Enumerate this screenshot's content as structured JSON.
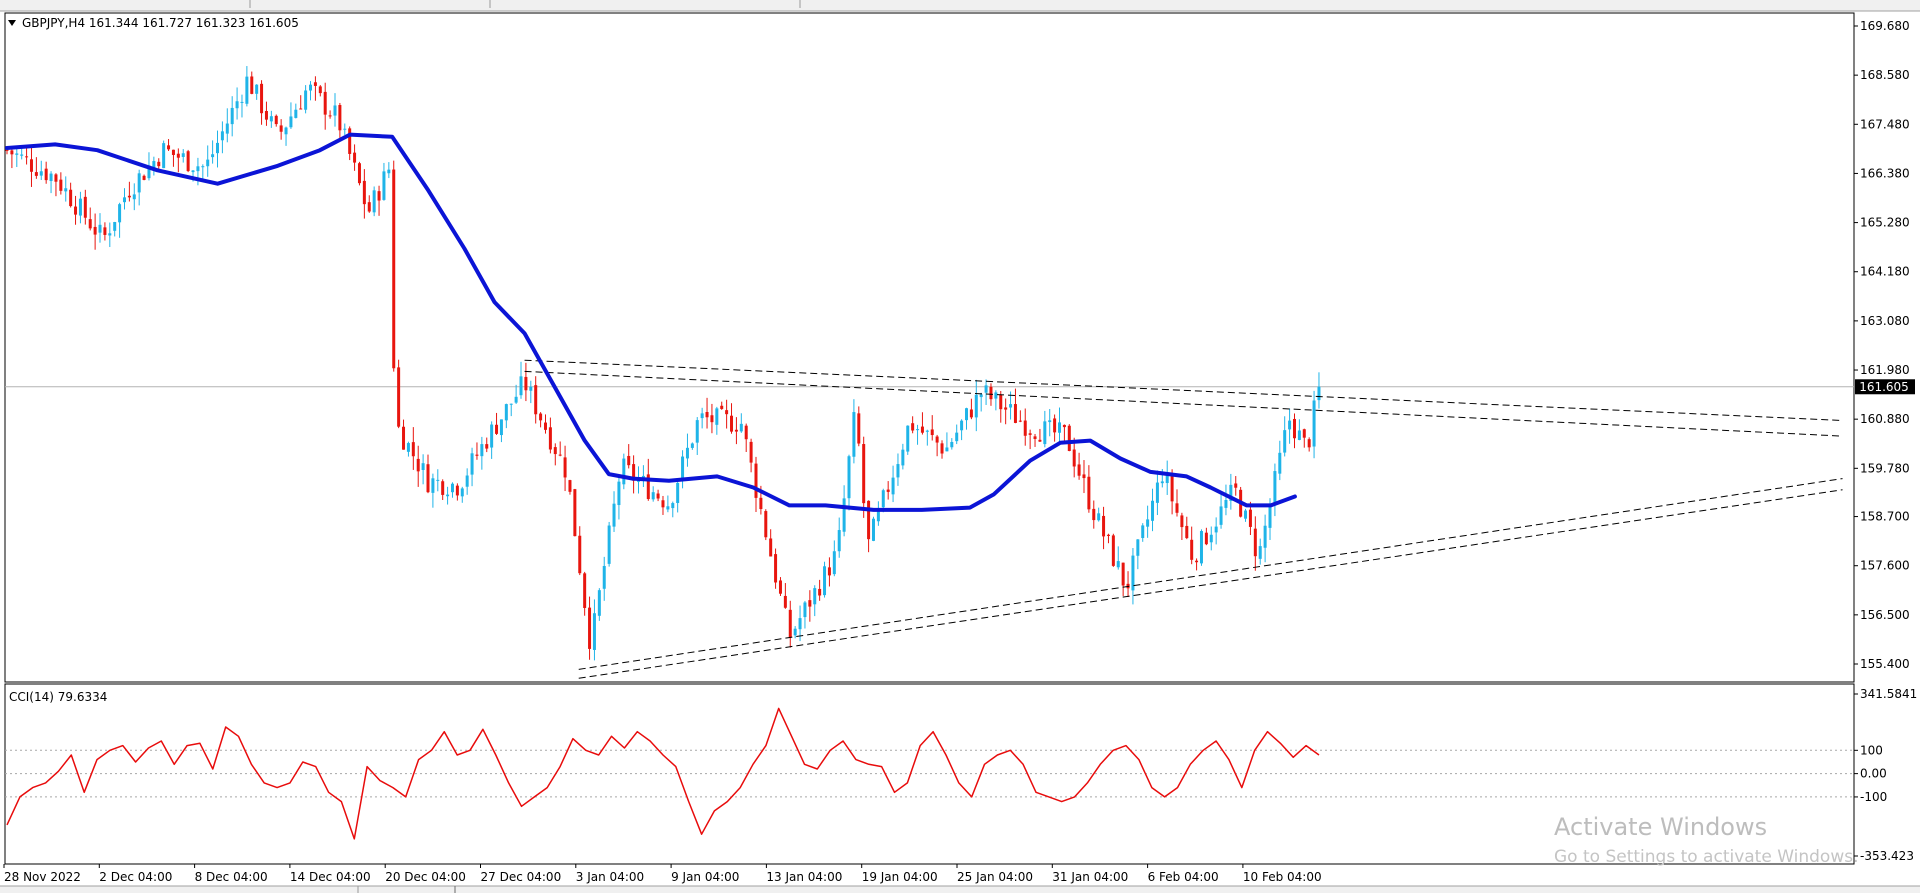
{
  "window": {
    "symbol_header": "GBPJPY,H4  161.344 161.727 161.323 161.605",
    "current_price_label": "161.605"
  },
  "watermark": {
    "title": "Activate Windows",
    "subtitle": "Go to Settings to activate Windows."
  },
  "colors": {
    "bull": "#1fb4e8",
    "bear": "#e8150e",
    "ma": "#0b14d6",
    "cci": "#e80c0c",
    "price_label_bg": "#000000",
    "grid_line": "#b4b4b4"
  },
  "chart_data": [
    {
      "type": "candlestick",
      "title": "GBPJPY,H4",
      "ohlc_header": {
        "open": 161.344,
        "high": 161.727,
        "low": 161.323,
        "close": 161.605
      },
      "current_price": 161.605,
      "ylim": [
        154.97,
        170.1
      ],
      "y_ticks": [
        "169.680",
        "168.580",
        "167.480",
        "166.380",
        "165.280",
        "164.180",
        "163.080",
        "161.980",
        "160.880",
        "159.780",
        "158.700",
        "157.600",
        "156.500",
        "155.400"
      ],
      "x_ticks": [
        "28 Nov 2022",
        "2 Dec 04:00",
        "8 Dec 04:00",
        "14 Dec 04:00",
        "20 Dec 04:00",
        "27 Dec 04:00",
        "3 Jan 04:00",
        "9 Jan 04:00",
        "13 Jan 04:00",
        "19 Jan 04:00",
        "25 Jan 04:00",
        "31 Jan 04:00",
        "6 Feb 04:00",
        "10 Feb 04:00"
      ],
      "close_path": [
        {
          "t": 0,
          "v": 166.9
        },
        {
          "t": 0.08,
          "v": 166.3
        },
        {
          "t": 0.16,
          "v": 164.9
        },
        {
          "t": 0.2,
          "v": 166.0
        },
        {
          "t": 0.26,
          "v": 166.9
        },
        {
          "t": 0.33,
          "v": 166.5
        },
        {
          "t": 0.4,
          "v": 168.5
        },
        {
          "t": 0.45,
          "v": 167.2
        },
        {
          "t": 0.5,
          "v": 168.3
        },
        {
          "t": 0.55,
          "v": 167.6
        },
        {
          "t": 0.6,
          "v": 165.5
        },
        {
          "t": 0.635,
          "v": 166.5
        },
        {
          "t": 0.645,
          "v": 160.8
        },
        {
          "t": 0.7,
          "v": 159.5
        },
        {
          "t": 0.75,
          "v": 159.4
        },
        {
          "t": 0.8,
          "v": 160.5
        },
        {
          "t": 0.86,
          "v": 161.7
        },
        {
          "t": 0.93,
          "v": 159.7
        },
        {
          "t": 0.97,
          "v": 155.8
        },
        {
          "t": 1.02,
          "v": 159.8
        },
        {
          "t": 1.1,
          "v": 159.0
        },
        {
          "t": 1.15,
          "v": 160.9
        },
        {
          "t": 1.22,
          "v": 160.8
        },
        {
          "t": 1.3,
          "v": 156.0
        },
        {
          "t": 1.38,
          "v": 157.9
        },
        {
          "t": 1.41,
          "v": 161.1
        },
        {
          "t": 1.43,
          "v": 158.0
        },
        {
          "t": 1.5,
          "v": 160.8
        },
        {
          "t": 1.56,
          "v": 160.2
        },
        {
          "t": 1.62,
          "v": 161.5
        },
        {
          "t": 1.7,
          "v": 160.7
        },
        {
          "t": 1.76,
          "v": 160.5
        },
        {
          "t": 1.8,
          "v": 159.0
        },
        {
          "t": 1.86,
          "v": 157.1
        },
        {
          "t": 1.92,
          "v": 159.7
        },
        {
          "t": 1.97,
          "v": 157.8
        },
        {
          "t": 2.04,
          "v": 159.3
        },
        {
          "t": 2.08,
          "v": 157.8
        },
        {
          "t": 2.13,
          "v": 160.9
        },
        {
          "t": 2.16,
          "v": 160.2
        },
        {
          "t": 2.18,
          "v": 161.6
        }
      ],
      "moving_average": [
        {
          "t": 0,
          "v": 166.95
        },
        {
          "t": 0.08,
          "v": 167.03
        },
        {
          "t": 0.15,
          "v": 166.9
        },
        {
          "t": 0.25,
          "v": 166.45
        },
        {
          "t": 0.35,
          "v": 166.15
        },
        {
          "t": 0.45,
          "v": 166.55
        },
        {
          "t": 0.52,
          "v": 166.9
        },
        {
          "t": 0.57,
          "v": 167.25
        },
        {
          "t": 0.64,
          "v": 167.2
        },
        {
          "t": 0.7,
          "v": 166.0
        },
        {
          "t": 0.76,
          "v": 164.7
        },
        {
          "t": 0.81,
          "v": 163.5
        },
        {
          "t": 0.86,
          "v": 162.8
        },
        {
          "t": 0.91,
          "v": 161.6
        },
        {
          "t": 0.96,
          "v": 160.4
        },
        {
          "t": 1.0,
          "v": 159.65
        },
        {
          "t": 1.04,
          "v": 159.55
        },
        {
          "t": 1.1,
          "v": 159.5
        },
        {
          "t": 1.18,
          "v": 159.6
        },
        {
          "t": 1.24,
          "v": 159.35
        },
        {
          "t": 1.3,
          "v": 158.95
        },
        {
          "t": 1.36,
          "v": 158.95
        },
        {
          "t": 1.44,
          "v": 158.85
        },
        {
          "t": 1.52,
          "v": 158.85
        },
        {
          "t": 1.6,
          "v": 158.9
        },
        {
          "t": 1.64,
          "v": 159.2
        },
        {
          "t": 1.7,
          "v": 159.95
        },
        {
          "t": 1.75,
          "v": 160.35
        },
        {
          "t": 1.8,
          "v": 160.4
        },
        {
          "t": 1.85,
          "v": 160.0
        },
        {
          "t": 1.9,
          "v": 159.7
        },
        {
          "t": 1.96,
          "v": 159.6
        },
        {
          "t": 2.0,
          "v": 159.35
        },
        {
          "t": 2.06,
          "v": 158.95
        },
        {
          "t": 2.1,
          "v": 158.95
        },
        {
          "t": 2.14,
          "v": 159.15
        }
      ],
      "trendlines": [
        {
          "style": "dashed",
          "from": {
            "t": 0.86,
            "v": 162.2
          },
          "to": {
            "t": 3.05,
            "v": 160.85
          }
        },
        {
          "style": "dashed",
          "from": {
            "t": 0.86,
            "v": 161.95
          },
          "to": {
            "t": 3.05,
            "v": 160.5
          }
        },
        {
          "style": "dashed",
          "from": {
            "t": 0.95,
            "v": 155.28
          },
          "to": {
            "t": 3.05,
            "v": 159.55
          }
        },
        {
          "style": "dashed",
          "from": {
            "t": 0.95,
            "v": 155.08
          },
          "to": {
            "t": 3.05,
            "v": 159.3
          }
        }
      ]
    },
    {
      "type": "line",
      "title": "CCI(14) 79.6334",
      "ylim": [
        -353.423,
        341.5841
      ],
      "y_ticks": [
        "341.5841",
        "100",
        "0.00",
        "-100",
        "-353.423"
      ],
      "levels": [
        100,
        0,
        -100
      ],
      "series": [
        {
          "values": [
            -220,
            -100,
            -60,
            -40,
            10,
            80,
            -80,
            60,
            100,
            120,
            50,
            110,
            140,
            40,
            120,
            130,
            20,
            200,
            160,
            40,
            -40,
            -60,
            -40,
            50,
            30,
            -80,
            -120,
            -280,
            30,
            -30,
            -60,
            -100,
            60,
            100,
            180,
            80,
            100,
            190,
            80,
            -40,
            -140,
            -100,
            -60,
            30,
            150,
            100,
            80,
            160,
            110,
            180,
            140,
            80,
            30,
            -120,
            -260,
            -160,
            -120,
            -60,
            40,
            120,
            280,
            160,
            40,
            20,
            100,
            140,
            60,
            40,
            30,
            -80,
            -40,
            120,
            180,
            80,
            -40,
            -100,
            40,
            80,
            100,
            40,
            -80,
            -100,
            -120,
            -100,
            -40,
            40,
            100,
            120,
            60,
            -60,
            -100,
            -60,
            40,
            100,
            140,
            60,
            -60,
            100,
            180,
            130,
            70,
            120,
            80
          ]
        }
      ]
    }
  ]
}
